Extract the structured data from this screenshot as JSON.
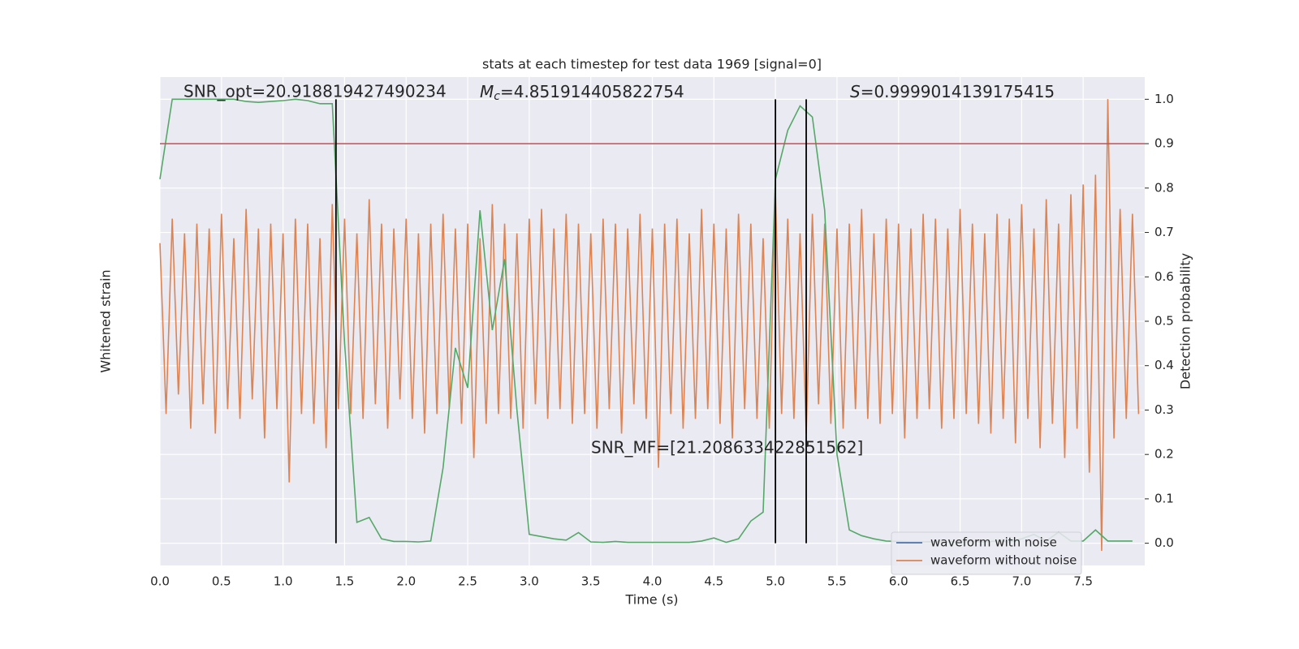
{
  "chart_data": {
    "type": "line",
    "title": "stats at each timestep for test data 1969 [signal=0]",
    "xlabel": "Time (s)",
    "ylabel": "Whitened strain",
    "y2label": "Detection probability",
    "xlim": [
      0,
      8
    ],
    "ylim": [
      -5,
      5
    ],
    "y2lim": [
      -0.05,
      1.05
    ],
    "xticks": [
      {
        "value": 0,
        "label": "0.0"
      },
      0.5,
      {
        "value": 1,
        "label": "1.0"
      },
      1.5,
      {
        "value": 2,
        "label": "2.0"
      },
      2.5,
      {
        "value": 3,
        "label": "3.0"
      },
      3.5,
      {
        "value": 4,
        "label": "4.0"
      },
      4.5,
      {
        "value": 5,
        "label": "5.0"
      },
      5.5,
      {
        "value": 6,
        "label": "6.0"
      },
      6.5,
      {
        "value": 7,
        "label": "7.0"
      },
      7.5
    ],
    "y2ticks": [
      {
        "value": 0,
        "label": "0.0"
      },
      0.1,
      0.2,
      0.3,
      0.4,
      0.5,
      0.6,
      0.7,
      0.8,
      0.9,
      {
        "value": 1,
        "label": "1.0"
      }
    ],
    "grid": true,
    "background": "#eaeaf2",
    "legend": "lower right",
    "series": [
      {
        "name": "waveform with noise",
        "color": "#4c72b0"
      },
      {
        "name": "waveform without noise",
        "color": "#dd8452",
        "x": [
          0,
          0.05,
          0.1,
          0.15,
          0.2,
          0.25,
          0.3,
          0.35,
          0.4,
          0.45,
          0.5,
          0.55,
          0.6,
          0.65,
          0.7,
          0.75,
          0.8,
          0.85,
          0.9,
          0.95,
          1,
          1.05,
          1.1,
          1.15,
          1.2,
          1.25,
          1.3,
          1.35,
          1.4,
          1.45,
          1.5,
          1.55,
          1.6,
          1.65,
          1.7,
          1.75,
          1.8,
          1.85,
          1.9,
          1.95,
          2,
          2.05,
          2.1,
          2.15,
          2.2,
          2.25,
          2.3,
          2.35,
          2.4,
          2.45,
          2.5,
          2.55,
          2.6,
          2.65,
          2.7,
          2.75,
          2.8,
          2.85,
          2.9,
          2.95,
          3,
          3.05,
          3.1,
          3.15,
          3.2,
          3.25,
          3.3,
          3.35,
          3.4,
          3.45,
          3.5,
          3.55,
          3.6,
          3.65,
          3.7,
          3.75,
          3.8,
          3.85,
          3.9,
          3.95,
          4,
          4.05,
          4.1,
          4.15,
          4.2,
          4.25,
          4.3,
          4.35,
          4.4,
          4.45,
          4.5,
          4.55,
          4.6,
          4.65,
          4.7,
          4.75,
          4.8,
          4.85,
          4.9,
          4.95,
          5,
          5.05,
          5.1,
          5.15,
          5.2,
          5.25,
          5.3,
          5.35,
          5.4,
          5.45,
          5.5,
          5.55,
          5.6,
          5.65,
          5.7,
          5.75,
          5.8,
          5.85,
          5.9,
          5.95,
          6,
          6.05,
          6.1,
          6.15,
          6.2,
          6.25,
          6.3,
          6.35,
          6.4,
          6.45,
          6.5,
          6.55,
          6.6,
          6.65,
          6.7,
          6.75,
          6.8,
          6.85,
          6.9,
          6.95,
          7,
          7.05,
          7.1,
          7.15,
          7.2,
          7.25,
          7.3,
          7.35,
          7.4,
          7.45,
          7.5,
          7.55,
          7.6,
          7.65,
          7.7,
          7.75,
          7.8,
          7.85,
          7.9,
          7.95
        ],
        "values": [
          1.6,
          -1.9,
          2.1,
          -1.5,
          1.8,
          -2.2,
          2.0,
          -1.7,
          1.9,
          -2.3,
          2.2,
          -1.8,
          1.7,
          -2.0,
          2.3,
          -1.6,
          1.9,
          -2.4,
          2.0,
          -1.8,
          1.8,
          -3.3,
          2.1,
          -1.9,
          2.0,
          -2.1,
          1.7,
          -2.6,
          2.4,
          -1.8,
          2.1,
          -1.9,
          1.8,
          -2.0,
          2.5,
          -1.7,
          2.0,
          -2.2,
          1.9,
          -1.6,
          2.1,
          -2.0,
          1.8,
          -2.3,
          2.0,
          -1.9,
          2.2,
          -1.8,
          1.9,
          -2.1,
          2.0,
          -2.8,
          1.7,
          -2.1,
          2.4,
          -1.9,
          2.0,
          -2.0,
          1.8,
          -2.2,
          2.1,
          -1.7,
          2.3,
          -2.0,
          1.9,
          -1.8,
          2.2,
          -2.1,
          2.0,
          -1.9,
          1.8,
          -2.2,
          2.1,
          -1.8,
          2.0,
          -2.3,
          1.9,
          -1.7,
          2.2,
          -2.0,
          1.9,
          -3.0,
          2.0,
          -1.9,
          2.1,
          -2.2,
          1.8,
          -2.0,
          2.3,
          -1.8,
          2.0,
          -2.1,
          1.9,
          -2.4,
          2.2,
          -1.8,
          2.0,
          -2.0,
          1.7,
          -2.2,
          2.6,
          -1.9,
          2.1,
          -2.0,
          1.8,
          -2.3,
          2.2,
          -1.7,
          2.0,
          -2.1,
          1.9,
          -2.2,
          2.0,
          -1.8,
          2.3,
          -2.0,
          1.8,
          -2.1,
          2.1,
          -1.9,
          2.0,
          -2.4,
          1.9,
          -2.0,
          2.2,
          -1.8,
          2.1,
          -2.2,
          1.9,
          -2.0,
          2.3,
          -1.9,
          2.0,
          -2.1,
          1.8,
          -2.3,
          2.2,
          -2.0,
          2.1,
          -2.5,
          2.4,
          -2.0,
          1.9,
          -2.6,
          2.5,
          -2.1,
          2.0,
          -2.8,
          2.6,
          -2.2,
          2.8,
          -3.1,
          3.0,
          -4.7,
          4.55,
          -2.4,
          2.3,
          -2.0,
          2.2,
          -1.9
        ]
      },
      {
        "name": "detection probability",
        "color": "#55a868",
        "axis": "y2",
        "in_legend": false,
        "x": [
          0,
          0.1,
          0.2,
          0.3,
          0.4,
          0.5,
          0.6,
          0.7,
          0.8,
          0.9,
          1,
          1.1,
          1.2,
          1.3,
          1.4,
          1.5,
          1.6,
          1.7,
          1.8,
          1.9,
          2,
          2.1,
          2.2,
          2.3,
          2.4,
          2.5,
          2.6,
          2.7,
          2.8,
          2.9,
          3,
          3.1,
          3.2,
          3.3,
          3.4,
          3.5,
          3.6,
          3.7,
          3.8,
          3.9,
          4,
          4.1,
          4.2,
          4.3,
          4.4,
          4.5,
          4.6,
          4.7,
          4.8,
          4.9,
          5,
          5.1,
          5.2,
          5.3,
          5.4,
          5.5,
          5.6,
          5.7,
          5.8,
          5.9,
          6,
          6.1,
          6.2,
          6.3,
          6.4,
          6.5,
          6.6,
          6.7,
          6.8,
          6.9,
          7,
          7.1,
          7.2,
          7.3,
          7.4,
          7.5,
          7.6,
          7.7,
          7.8,
          7.9
        ],
        "values": [
          0.82,
          1.0,
          1.0,
          1.0,
          1.0,
          1.0,
          1.0,
          0.995,
          0.993,
          0.995,
          0.997,
          1.0,
          0.997,
          0.99,
          0.99,
          0.45,
          0.047,
          0.058,
          0.01,
          0.004,
          0.004,
          0.003,
          0.005,
          0.17,
          0.44,
          0.35,
          0.75,
          0.48,
          0.64,
          0.3,
          0.02,
          0.015,
          0.01,
          0.007,
          0.024,
          0.003,
          0.002,
          0.004,
          0.002,
          0.002,
          0.002,
          0.002,
          0.002,
          0.002,
          0.005,
          0.012,
          0.002,
          0.01,
          0.05,
          0.07,
          0.82,
          0.93,
          0.985,
          0.96,
          0.75,
          0.2,
          0.03,
          0.017,
          0.01,
          0.005,
          0.004,
          0.003,
          0.003,
          0.004,
          0.003,
          0.003,
          0.004,
          0.003,
          0.005,
          0.003,
          0.01,
          0.02,
          0.005,
          0.025,
          0.005,
          0.005,
          0.03,
          0.005,
          0.005,
          0.005
        ]
      }
    ],
    "threshold": {
      "value": 0.9,
      "color": "#c44e52",
      "axis": "y2"
    },
    "vlines": {
      "x": [
        1.43,
        5.0,
        5.25
      ],
      "color": "#000000"
    },
    "annotations": [
      {
        "text": "SNR_opt=20.918819427490234"
      },
      {
        "symbol": "M",
        "subscript": "c",
        "text": "=4.851914405822754"
      },
      {
        "symbol": "S",
        "text": "=0.9999014139175415"
      },
      {
        "text": "SNR_MF=[21.208633422851562]"
      }
    ]
  }
}
